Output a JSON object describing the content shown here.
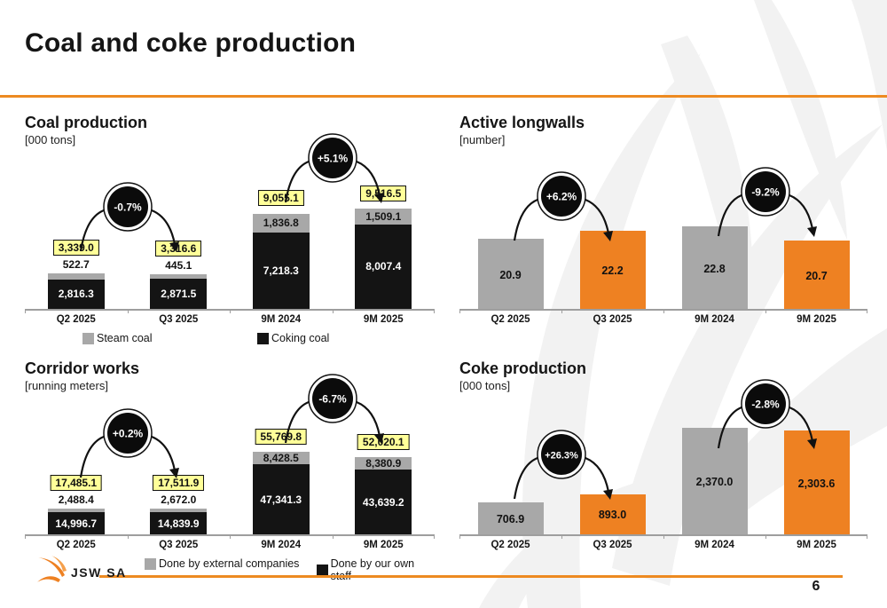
{
  "page": {
    "title": "Coal and coke production"
  },
  "footer": {
    "logo_text": "JSW SA",
    "page_number": "6"
  },
  "colors": {
    "accent_orange": "#EE8122",
    "header_line": "#ED8A21",
    "bar_gray": "#A8A8A8",
    "bar_black": "#141414",
    "total_label_bg": "#FFFF99",
    "watermark": "#F2F2F2"
  },
  "chart_data": [
    {
      "id": "coal-production",
      "type": "bar",
      "stacked": true,
      "title": "Coal production",
      "unit": "[000 tons]",
      "categories": [
        "Q2 2025",
        "Q3 2025",
        "9M 2024",
        "9M 2025"
      ],
      "series": [
        {
          "name": "Steam coal",
          "color": "gray",
          "values": [
            522.7,
            445.1,
            1836.8,
            1509.1
          ],
          "labels": [
            "522.7",
            "445.1",
            "1,836.8",
            "1,509.1"
          ]
        },
        {
          "name": "Coking coal",
          "color": "black",
          "values": [
            2816.3,
            2871.5,
            7218.3,
            8007.4
          ],
          "labels": [
            "2,816.3",
            "2,871.5",
            "7,218.3",
            "8,007.4"
          ]
        }
      ],
      "totals": [
        3339.0,
        3316.6,
        9055.1,
        9516.5
      ],
      "total_labels": [
        "3,339.0",
        "3,316.6",
        "9,055.1",
        "9,516.5"
      ],
      "changes": [
        {
          "between": "Q2 2025 vs Q3 2025",
          "label": "-0.7%"
        },
        {
          "between": "9M 2024 vs 9M 2025",
          "label": "+5.1%"
        }
      ]
    },
    {
      "id": "active-longwalls",
      "type": "bar",
      "stacked": false,
      "title": "Active longwalls",
      "unit": "[number]",
      "categories": [
        "Q2 2025",
        "Q3 2025",
        "9M 2024",
        "9M 2025"
      ],
      "values": [
        20.9,
        22.2,
        22.8,
        20.7
      ],
      "value_labels": [
        "20.9",
        "22.2",
        "22.8",
        "20.7"
      ],
      "bar_colors": [
        "gray",
        "orange",
        "gray",
        "orange"
      ],
      "changes": [
        {
          "between": "Q2 2025 vs Q3 2025",
          "label": "+6.2%"
        },
        {
          "between": "9M 2024 vs 9M 2025",
          "label": "-9.2%"
        }
      ]
    },
    {
      "id": "corridor-works",
      "type": "bar",
      "stacked": true,
      "title": "Corridor works",
      "unit": "[running meters]",
      "categories": [
        "Q2 2025",
        "Q3 2025",
        "9M 2024",
        "9M 2025"
      ],
      "series": [
        {
          "name": "Done by external companies",
          "color": "gray",
          "values": [
            2488.4,
            2672.0,
            8428.5,
            8380.9
          ],
          "labels": [
            "2,488.4",
            "2,672.0",
            "8,428.5",
            "8,380.9"
          ]
        },
        {
          "name": "Done by our own staff",
          "color": "black",
          "values": [
            14996.7,
            14839.9,
            47341.3,
            43639.2
          ],
          "labels": [
            "14,996.7",
            "14,839.9",
            "47,341.3",
            "43,639.2"
          ]
        }
      ],
      "totals": [
        17485.1,
        17511.9,
        55769.8,
        52020.1
      ],
      "total_labels": [
        "17,485.1",
        "17,511.9",
        "55,769.8",
        "52,020.1"
      ],
      "changes": [
        {
          "between": "Q2 2025 vs Q3 2025",
          "label": "+0.2%"
        },
        {
          "between": "9M 2024 vs 9M 2025",
          "label": "-6.7%"
        }
      ]
    },
    {
      "id": "coke-production",
      "type": "bar",
      "stacked": false,
      "title": "Coke production",
      "unit": "[000 tons]",
      "categories": [
        "Q2 2025",
        "Q3 2025",
        "9M 2024",
        "9M 2025"
      ],
      "values": [
        706.9,
        893.0,
        2370.0,
        2303.6
      ],
      "value_labels": [
        "706.9",
        "893.0",
        "2,370.0",
        "2,303.6"
      ],
      "bar_colors": [
        "gray",
        "orange",
        "gray",
        "orange"
      ],
      "changes": [
        {
          "between": "Q2 2025 vs Q3 2025",
          "label": "+26.3%"
        },
        {
          "between": "9M 2024 vs 9M 2025",
          "label": "-2.8%"
        }
      ]
    }
  ]
}
